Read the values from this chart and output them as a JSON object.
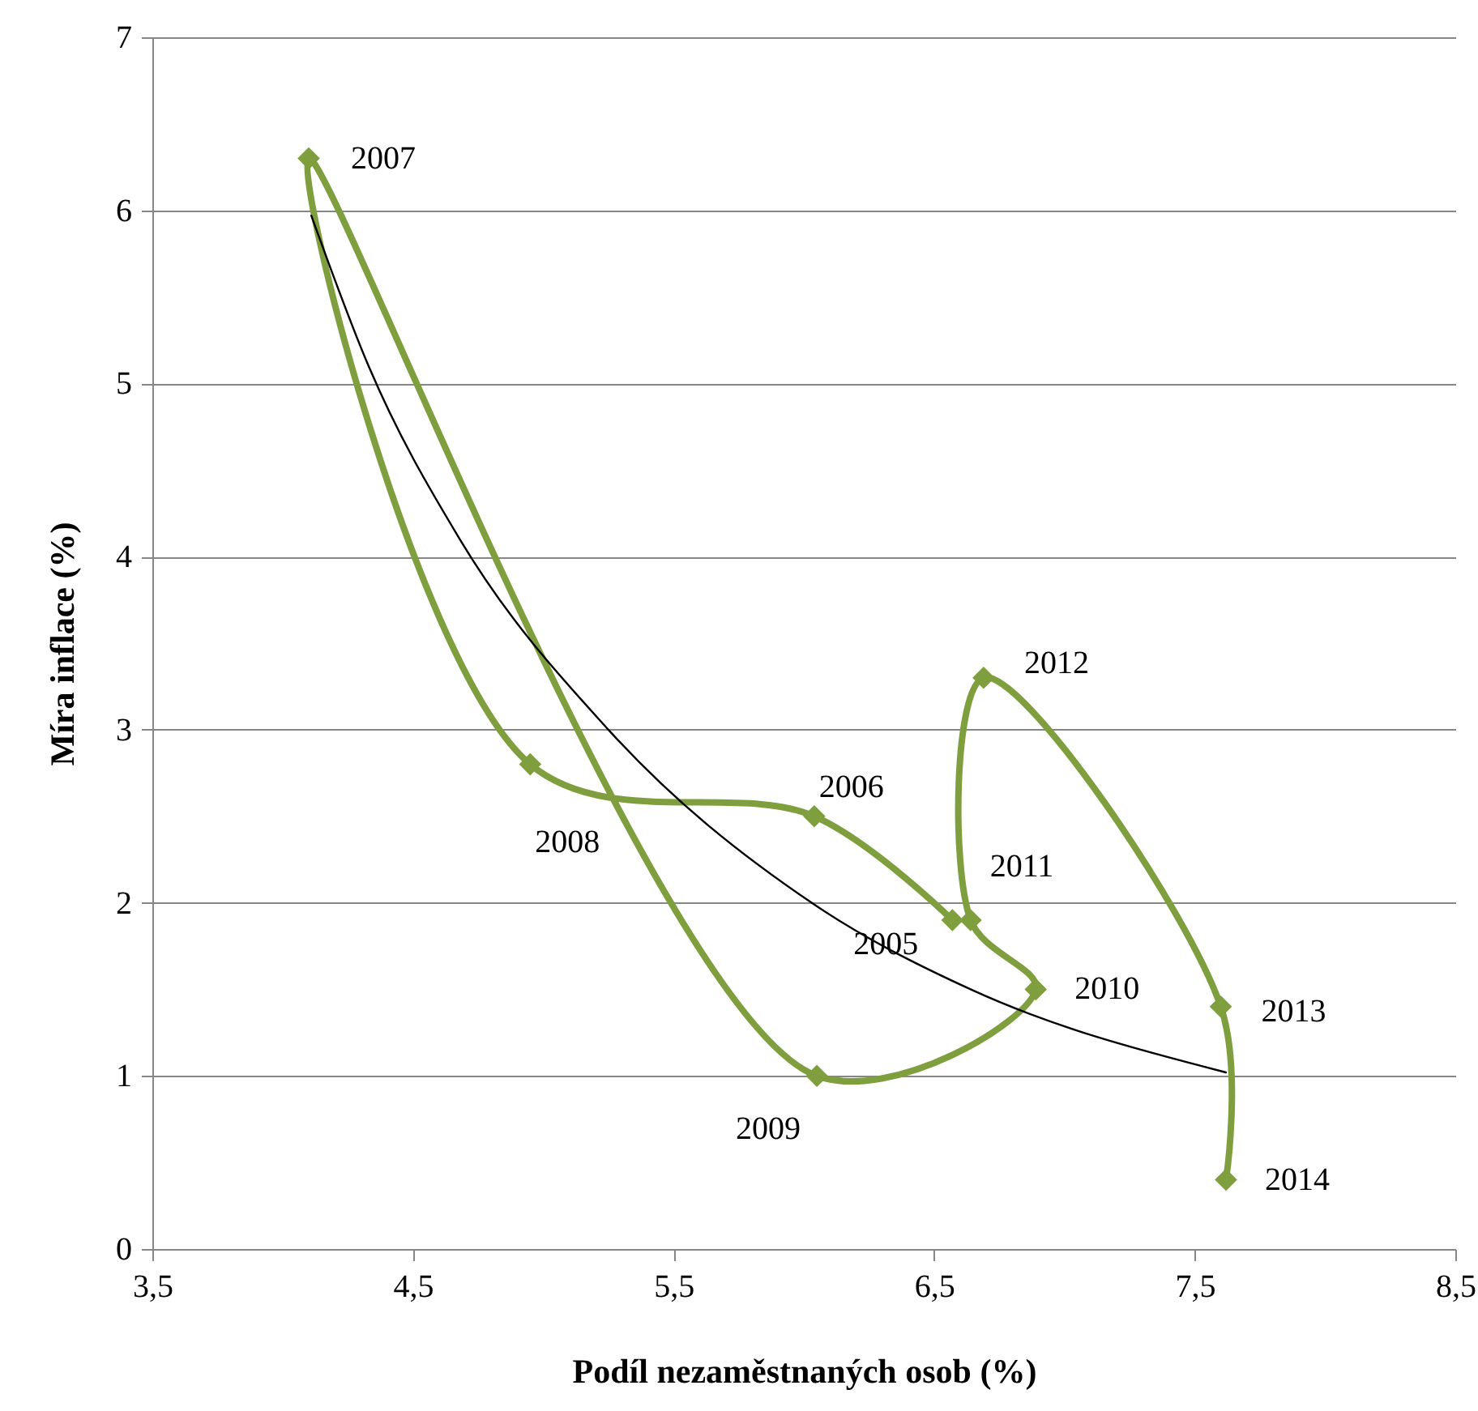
{
  "chart_data": {
    "type": "line",
    "xlabel": "Podíl nezaměstnaných osob (%)",
    "ylabel": "Míra inflace (%)",
    "series": [
      {
        "color": "#7f9f3f",
        "marker": "diamond",
        "x": [
          6.57,
          6.04,
          4.95,
          4.1,
          6.05,
          6.89,
          6.64,
          6.69,
          7.6,
          7.62
        ],
        "values": [
          1.9,
          2.5,
          2.8,
          6.3,
          1.0,
          1.5,
          1.9,
          3.3,
          1.4,
          0.4
        ]
      },
      {
        "color": "#000000",
        "marker": "none",
        "x": [
          4.11,
          4.33,
          4.68,
          5.25,
          6.03,
          6.64,
          7.62
        ],
        "values": [
          5.97,
          5.1,
          4.1,
          3.0,
          2.0,
          1.5,
          1.02
        ]
      }
    ],
    "annotations": [
      {
        "text": "2005",
        "x": 6.57,
        "y": 1.9
      },
      {
        "text": "2006",
        "x": 6.04,
        "y": 2.5
      },
      {
        "text": "2008",
        "x": 4.95,
        "y": 2.8
      },
      {
        "text": "2007",
        "x": 4.1,
        "y": 6.3
      },
      {
        "text": "2009",
        "x": 6.05,
        "y": 1.0
      },
      {
        "text": "2010",
        "x": 6.89,
        "y": 1.5
      },
      {
        "text": "2011",
        "x": 6.64,
        "y": 1.9
      },
      {
        "text": "2012",
        "x": 6.69,
        "y": 3.3
      },
      {
        "text": "2013",
        "x": 7.6,
        "y": 1.4
      },
      {
        "text": "2014",
        "x": 7.62,
        "y": 0.4
      }
    ],
    "xlim": [
      3.5,
      8.5
    ],
    "xticks": [
      {
        "value": 3.5,
        "label": "3,5"
      },
      {
        "value": 4.5,
        "label": "4,5"
      },
      {
        "value": 5.5,
        "label": "5,5"
      },
      {
        "value": 6.5,
        "label": "6,5"
      },
      {
        "value": 7.5,
        "label": "7,5"
      },
      {
        "value": 8.5,
        "label": "8,5"
      }
    ],
    "ylim": [
      0,
      7
    ],
    "yticks": [
      0,
      1,
      2,
      3,
      4,
      5,
      6,
      7
    ],
    "grid": "y",
    "line_style": "solid"
  }
}
